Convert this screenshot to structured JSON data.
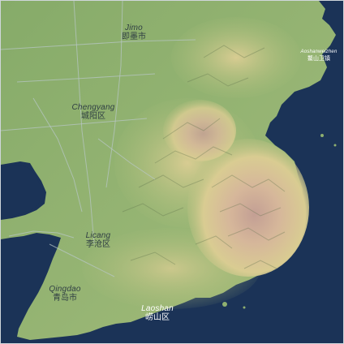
{
  "map": {
    "colors": {
      "sea": "#1b3357",
      "lowland": "#8fb070",
      "lowland_dark": "#6f9a5a",
      "hills": "#c9c887",
      "uplands": "#dcc9a0",
      "peaks": "#c39f94",
      "roads": "#b9c8c9"
    },
    "labels": {
      "jimo": {
        "en": "Jimo",
        "zh": "即墨市"
      },
      "chengyang": {
        "en": "Chengyang",
        "zh": "城阳区"
      },
      "licang": {
        "en": "Licang",
        "zh": "李沧区"
      },
      "qingdao": {
        "en": "Qingdao",
        "zh": "青岛市"
      },
      "laoshan": {
        "en": "Laoshan",
        "zh": "崂山区"
      },
      "aoshanweizhen": {
        "en": "Aoshanweizhen",
        "zh": "鳌山卫镇"
      }
    }
  }
}
